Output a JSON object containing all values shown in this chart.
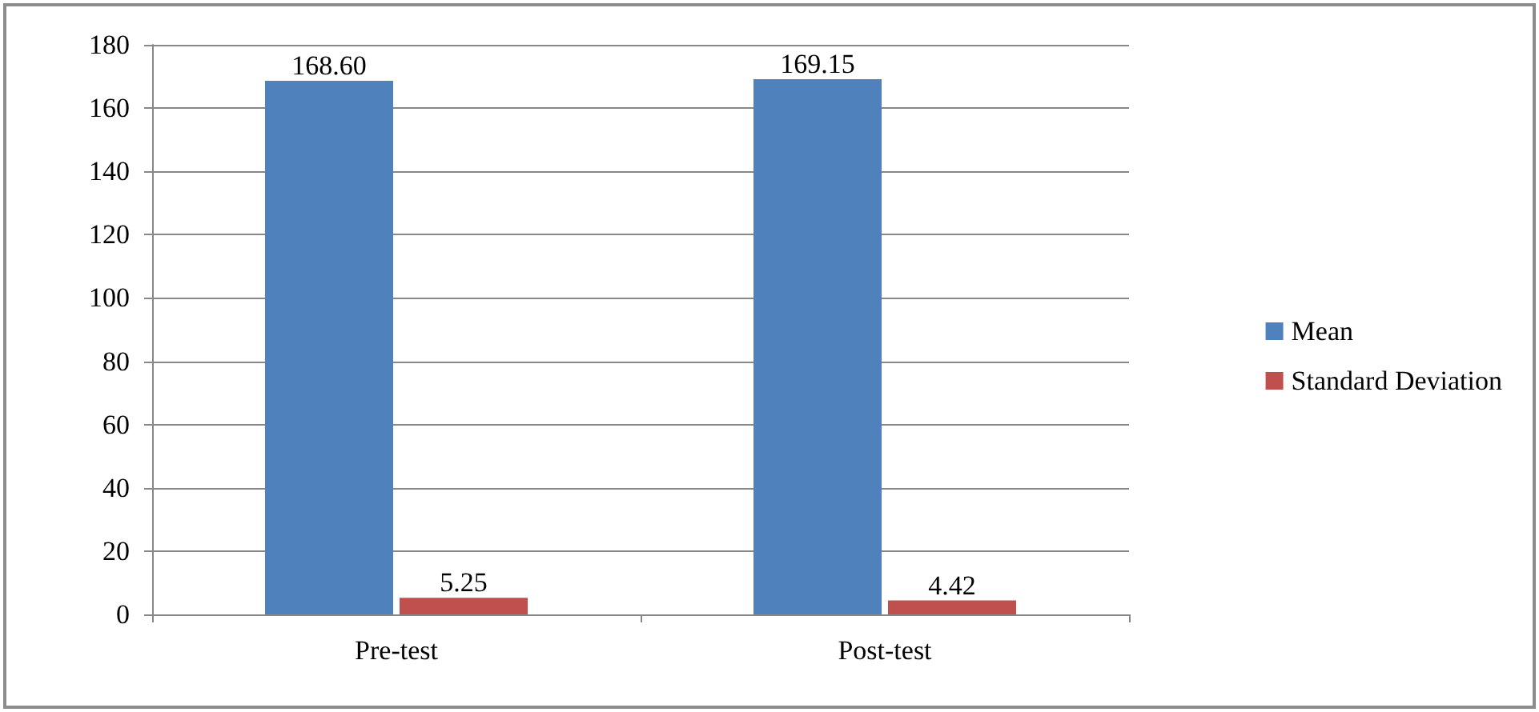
{
  "chart_data": {
    "type": "bar",
    "categories": [
      "Pre-test",
      "Post-test"
    ],
    "series": [
      {
        "name": "Mean",
        "color": "#4f81bd",
        "values": [
          168.6,
          169.15
        ],
        "value_labels": [
          "168.60",
          "169.15"
        ]
      },
      {
        "name": "Standard Deviation",
        "color": "#c0504d",
        "values": [
          5.25,
          4.42
        ],
        "value_labels": [
          "5.25",
          "4.42"
        ]
      }
    ],
    "ylim": [
      0,
      180
    ],
    "yticks": [
      0,
      20,
      40,
      60,
      80,
      100,
      120,
      140,
      160,
      180
    ],
    "grid": "y",
    "legend": "right"
  }
}
